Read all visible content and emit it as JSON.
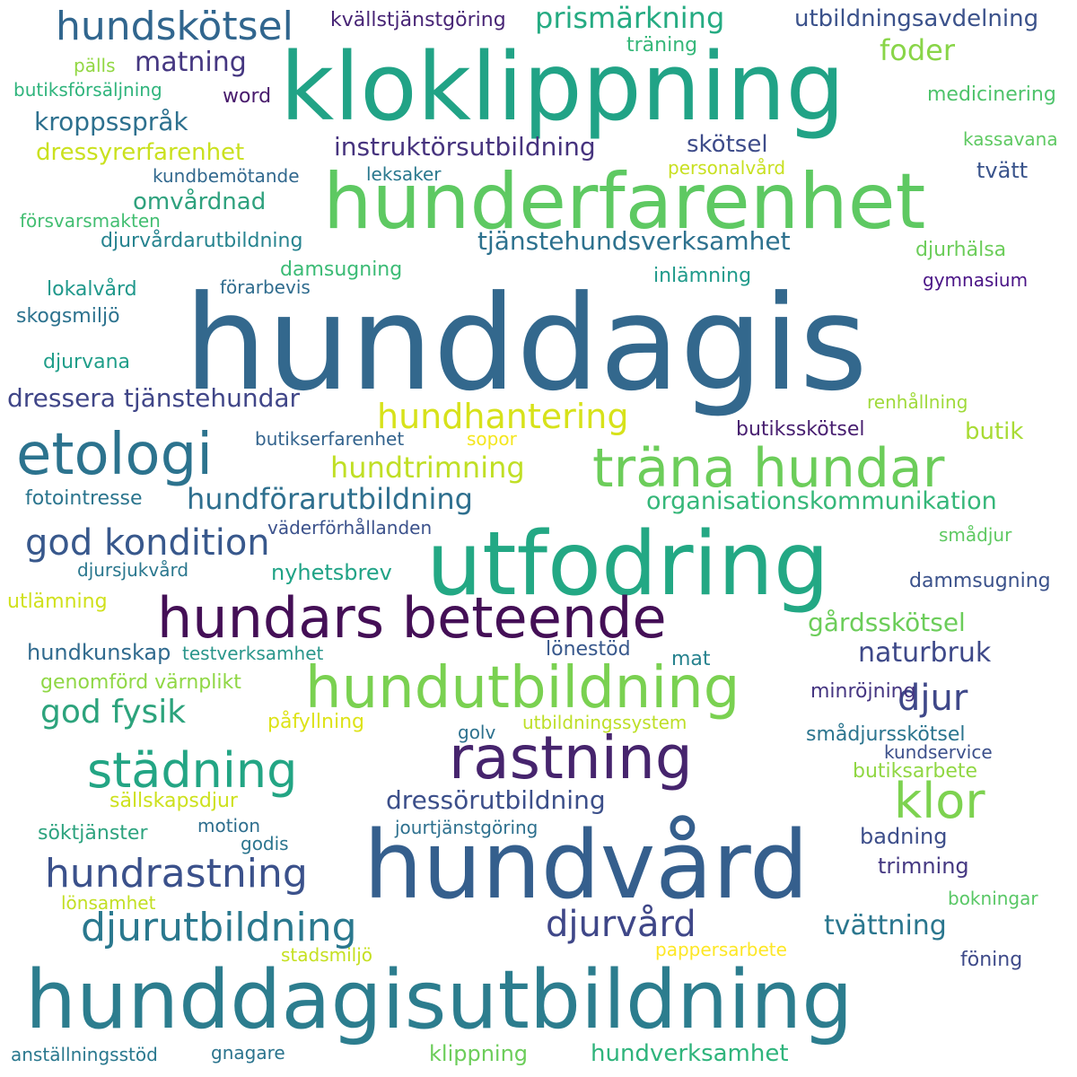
{
  "words": [
    {
      "text": "hunddagis",
      "color": "#33688d"
    },
    {
      "text": "kloklippning",
      "color": "#21a386"
    },
    {
      "text": "hunderfarenhet",
      "color": "#5ec962"
    },
    {
      "text": "utfodring",
      "color": "#23a884"
    },
    {
      "text": "hundvård",
      "color": "#355f8d"
    },
    {
      "text": "hunddagisutbildning",
      "color": "#2c7d8e"
    },
    {
      "text": "hundars beteende",
      "color": "#440f56"
    },
    {
      "text": "träna hundar",
      "color": "#6ccd5a"
    },
    {
      "text": "etologi",
      "color": "#2c738e"
    },
    {
      "text": "hundutbildning",
      "color": "#7ad151"
    },
    {
      "text": "rastning",
      "color": "#46246d"
    },
    {
      "text": "städning",
      "color": "#23a584"
    },
    {
      "text": "hundskötsel",
      "color": "#31668e"
    },
    {
      "text": "klor",
      "color": "#7dd250"
    },
    {
      "text": "hundrastning",
      "color": "#3b518b"
    },
    {
      "text": "djurutbildning",
      "color": "#2a788e"
    },
    {
      "text": "god kondition",
      "color": "#38588c"
    },
    {
      "text": "hundhantering",
      "color": "#d7e21a"
    },
    {
      "text": "djurvård",
      "color": "#3f4788"
    },
    {
      "text": "god fysik",
      "color": "#2ca37c"
    },
    {
      "text": "djur",
      "color": "#3f4889"
    },
    {
      "text": "hundtrimning",
      "color": "#c0df25"
    },
    {
      "text": "hundförarutbildning",
      "color": "#2e6f8e"
    },
    {
      "text": "prismärkning",
      "color": "#25ab82"
    },
    {
      "text": "matning",
      "color": "#453781"
    },
    {
      "text": "instruktörsutbildning",
      "color": "#46337e"
    },
    {
      "text": "tjänstehundsverksamhet",
      "color": "#2d718e"
    },
    {
      "text": "dressera tjänstehundar",
      "color": "#404688"
    },
    {
      "text": "dressörutbildning",
      "color": "#3c4f8a"
    },
    {
      "text": "foder",
      "color": "#89d548"
    },
    {
      "text": "kroppsspråk",
      "color": "#2d708e"
    },
    {
      "text": "dressyrerfarenhet",
      "color": "#cae11f"
    },
    {
      "text": "organisationskommunikation",
      "color": "#35b779"
    },
    {
      "text": "naturbruk",
      "color": "#3e4989"
    },
    {
      "text": "tvättning",
      "color": "#2a768e"
    },
    {
      "text": "gårdsskötsel",
      "color": "#6ccd5a"
    },
    {
      "text": "omvårdnad",
      "color": "#2ea17d"
    },
    {
      "text": "skötsel",
      "color": "#3e4c8a"
    },
    {
      "text": "butik",
      "color": "#a8db34"
    },
    {
      "text": "djurvårdarutbildning",
      "color": "#26838f"
    },
    {
      "text": "kvällstjänstgöring",
      "color": "#482576"
    },
    {
      "text": "utbildningsavdelning",
      "color": "#3b528b"
    },
    {
      "text": "träning",
      "color": "#35b779"
    },
    {
      "text": "pälls",
      "color": "#91d742"
    },
    {
      "text": "butiksförsäljning",
      "color": "#2fb47c"
    },
    {
      "text": "word",
      "color": "#481a6c"
    },
    {
      "text": "medicinering",
      "color": "#4ec36b"
    },
    {
      "text": "kassavana",
      "color": "#5ec962"
    },
    {
      "text": "personalvård",
      "color": "#c8e020"
    },
    {
      "text": "kundbemötande",
      "color": "#31688e"
    },
    {
      "text": "leksaker",
      "color": "#2a788e"
    },
    {
      "text": "tvätt",
      "color": "#3a548c"
    },
    {
      "text": "försvarsmakten",
      "color": "#42be71"
    },
    {
      "text": "djurhälsa",
      "color": "#6ccd5a"
    },
    {
      "text": "damsugning",
      "color": "#3bbb75"
    },
    {
      "text": "lokalvård",
      "color": "#1f988b"
    },
    {
      "text": "förarbevis",
      "color": "#2f6c8e"
    },
    {
      "text": "inlämning",
      "color": "#1f9a8a"
    },
    {
      "text": "gymnasium",
      "color": "#4a1486"
    },
    {
      "text": "skogsmiljö",
      "color": "#2c728e"
    },
    {
      "text": "djurvana",
      "color": "#1f9e89"
    },
    {
      "text": "renhållning",
      "color": "#9fda3a"
    },
    {
      "text": "butiksskötsel",
      "color": "#481f70"
    },
    {
      "text": "butikserfarenhet",
      "color": "#33638d"
    },
    {
      "text": "sopor",
      "color": "#f4e61e"
    },
    {
      "text": "fotointresse",
      "color": "#2b758e"
    },
    {
      "text": "väderförhållanden",
      "color": "#3b518b"
    },
    {
      "text": "smådjur",
      "color": "#5ec962"
    },
    {
      "text": "djursjukvård",
      "color": "#2a778e"
    },
    {
      "text": "nyhetsbrev",
      "color": "#20a386"
    },
    {
      "text": "utlämning",
      "color": "#d0e11c"
    },
    {
      "text": "dammsugning",
      "color": "#3b528b"
    },
    {
      "text": "hundkunskap",
      "color": "#306a8e"
    },
    {
      "text": "testverksamhet",
      "color": "#2a968b"
    },
    {
      "text": "lönestöd",
      "color": "#38588c"
    },
    {
      "text": "mat",
      "color": "#26828e"
    },
    {
      "text": "genomförd värnplikt",
      "color": "#8fd744"
    },
    {
      "text": "minröjning",
      "color": "#453581"
    },
    {
      "text": "påfyllning",
      "color": "#dde318"
    },
    {
      "text": "golv",
      "color": "#2c718e"
    },
    {
      "text": "utbildningssystem",
      "color": "#bddf26"
    },
    {
      "text": "smådjursskötsel",
      "color": "#2b748e"
    },
    {
      "text": "kundservice",
      "color": "#3c508b"
    },
    {
      "text": "butiksarbete",
      "color": "#90d743"
    },
    {
      "text": "sällskapsdjur",
      "color": "#cde11d"
    },
    {
      "text": "söktjänster",
      "color": "#2da37f"
    },
    {
      "text": "motion",
      "color": "#2e6e8e"
    },
    {
      "text": "jourtjänstgöring",
      "color": "#2d708e"
    },
    {
      "text": "godis",
      "color": "#2b758e"
    },
    {
      "text": "badning",
      "color": "#3d4e8a"
    },
    {
      "text": "trimning",
      "color": "#453882"
    },
    {
      "text": "lönsamhet",
      "color": "#c2df23"
    },
    {
      "text": "bokningar",
      "color": "#58c765"
    },
    {
      "text": "pappersarbete",
      "color": "#fde725"
    },
    {
      "text": "stadsmiljö",
      "color": "#c5e021"
    },
    {
      "text": "föning",
      "color": "#3e4a89"
    },
    {
      "text": "anställningsstöd",
      "color": "#2a788e"
    },
    {
      "text": "gnagare",
      "color": "#2b748e"
    },
    {
      "text": "klippning",
      "color": "#6ccd5a"
    },
    {
      "text": "hundverksamhet",
      "color": "#2fb47c"
    }
  ]
}
